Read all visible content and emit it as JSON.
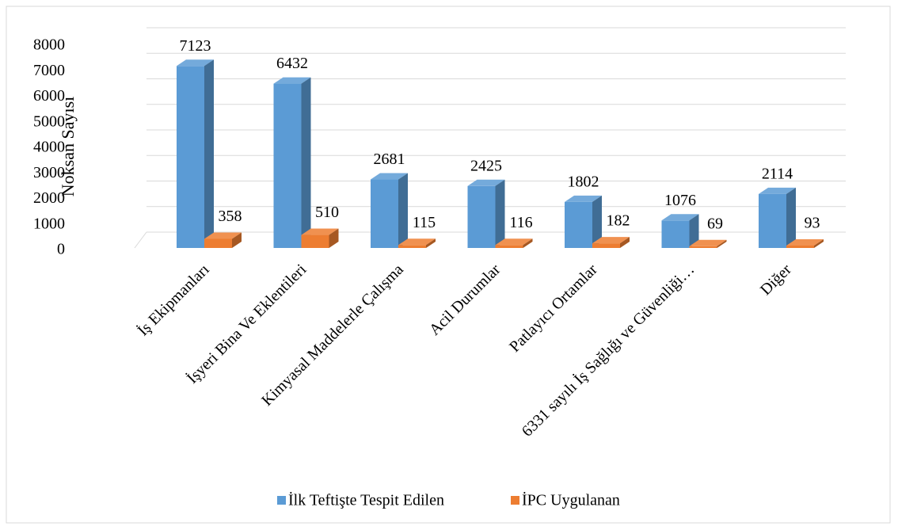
{
  "chart_data": {
    "type": "bar3d",
    "y_label": "Noksan Sayısı",
    "categories": [
      "İş Ekipmanları",
      "İşyeri Bina Ve Eklentileri",
      "Kimyasal Maddelerle Çalışma",
      "Acil Durumlar",
      "Patlayıcı Ortamlar",
      "6331 sayılı İş Sağlığı ve Güvenliği…",
      "Diğer"
    ],
    "series": [
      {
        "name": "İlk Teftişte Tespit Edilen",
        "color": "#5b9bd5",
        "values": [
          7123,
          6432,
          2681,
          2425,
          1802,
          1076,
          2114
        ]
      },
      {
        "name": "İPC Uygulanan",
        "color": "#ed7d31",
        "values": [
          358,
          510,
          115,
          116,
          182,
          69,
          93
        ]
      }
    ],
    "ylim": [
      0,
      8000
    ],
    "yticks": [
      0,
      1000,
      2000,
      3000,
      4000,
      5000,
      6000,
      7000,
      8000
    ],
    "grid": true,
    "legend": "bottom"
  }
}
